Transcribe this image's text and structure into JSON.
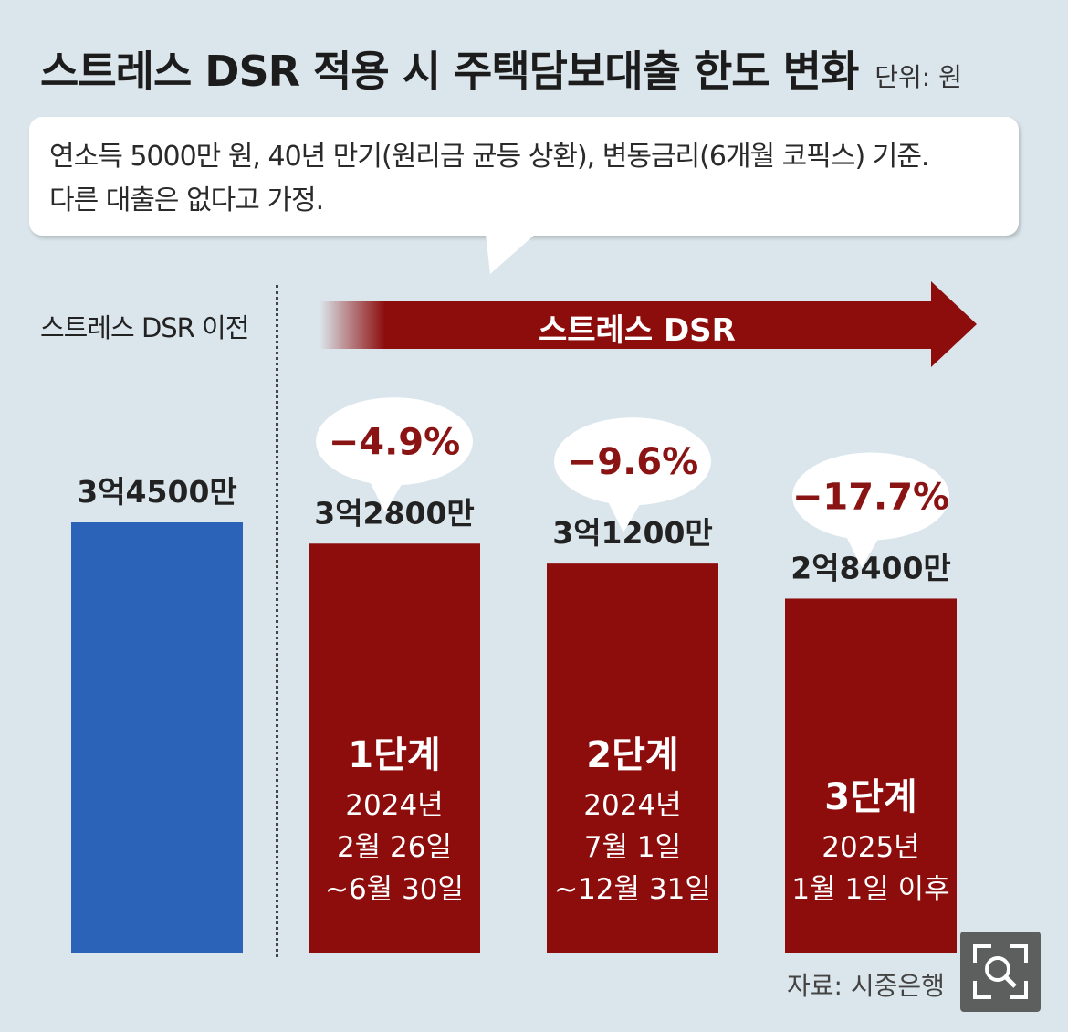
{
  "title": "스트레스 DSR 적용 시 주택담보대출 한도 변화",
  "unit_label": "단위: 원",
  "callout": {
    "line1": "연소득 5000만 원, 40년 만기(원리금 균등 상환), 변동금리(6개월 코픽스) 기준.",
    "line2": "다른 대출은 없다고 가정."
  },
  "before_label": "스트레스 DSR 이전",
  "arrow_label": "스트레스 DSR",
  "source": "자료: 시중은행",
  "colors": {
    "before": "#2a63b8",
    "stress": "#8d0d0d",
    "background": "#dbe6ec",
    "accent_text": "#8a1313"
  },
  "icons": {
    "zoom": "zoom-search-icon"
  },
  "chart_data": {
    "type": "bar",
    "title": "스트레스 DSR 적용 시 주택담보대출 한도 변화",
    "unit": "원",
    "categories": [
      "스트레스 DSR 이전",
      "1단계",
      "2단계",
      "3단계"
    ],
    "values": [
      345000000,
      328000000,
      312000000,
      284000000
    ],
    "value_labels": [
      "3억4500만",
      "3억2800만",
      "3억1200만",
      "2억8400만"
    ],
    "changes": [
      "",
      "−4.9%",
      "−9.6%",
      "−17.7%"
    ],
    "stage_lines": [
      [],
      [
        "2024년",
        "2월 26일",
        "~6월 30일"
      ],
      [
        "2024년",
        "7월 1일",
        "~12월 31일"
      ],
      [
        "2025년",
        "1월 1일 이후"
      ]
    ],
    "ylim": [
      0,
      345000000
    ]
  }
}
